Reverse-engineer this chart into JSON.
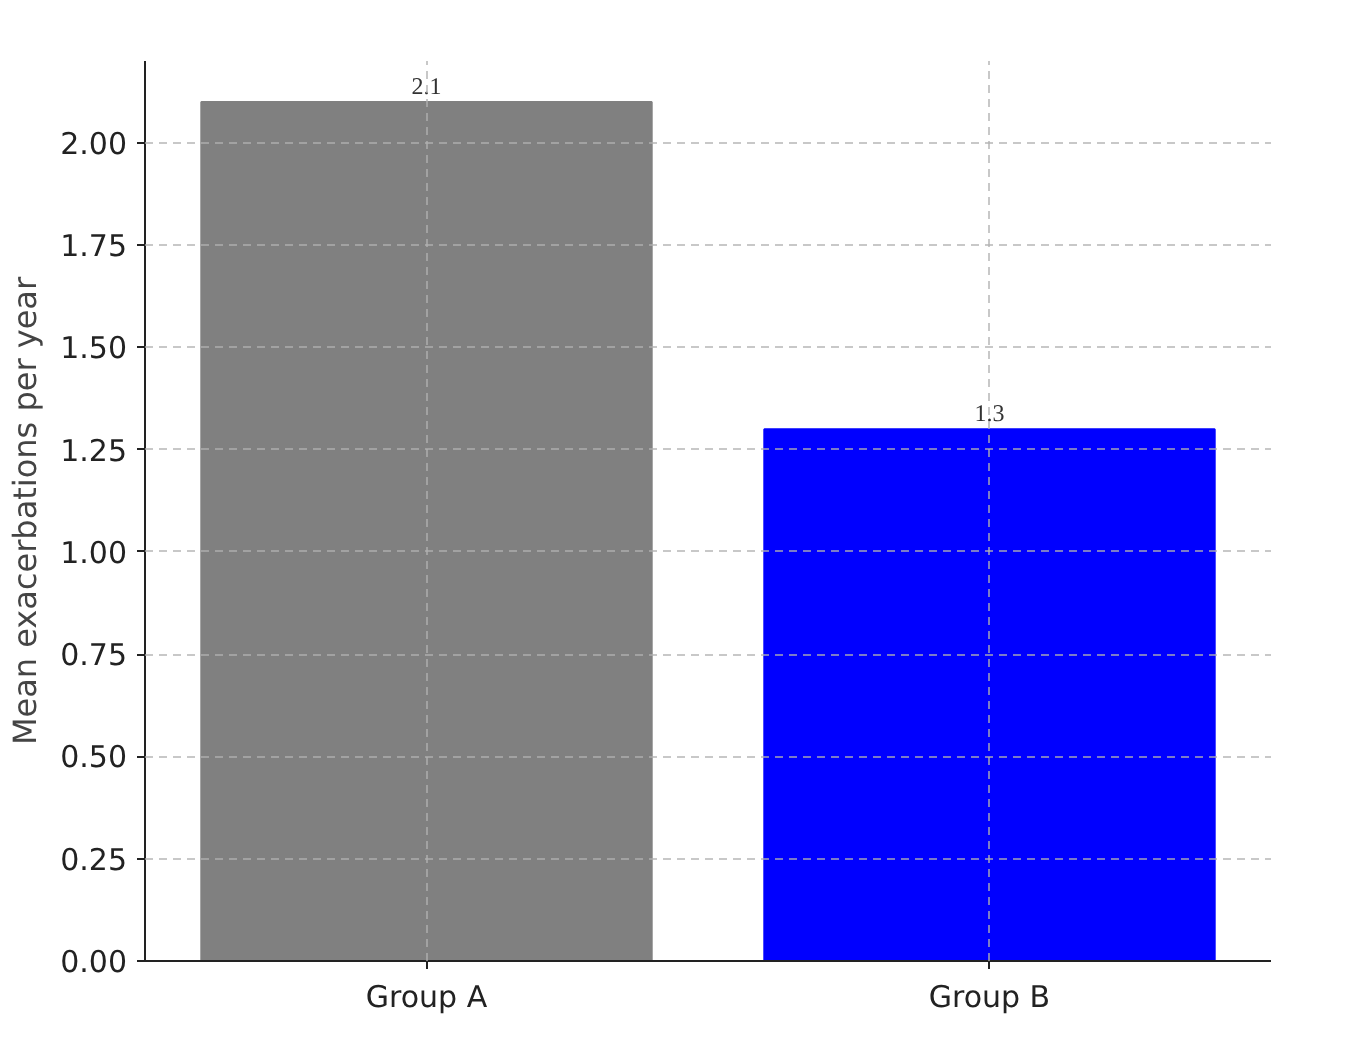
{
  "chart_data": {
    "type": "bar",
    "ylabel": "Mean exacerbations per year",
    "categories": [
      "Group A",
      "Group B"
    ],
    "values": [
      2.1,
      1.3
    ],
    "colors": [
      "#808080",
      "#0000ff"
    ],
    "ylim": [
      0,
      2.2
    ],
    "yticks": [
      {
        "value": 0,
        "label": "0.00"
      },
      {
        "value": 0.25,
        "label": "0.25"
      },
      {
        "value": 0.5,
        "label": "0.50"
      },
      {
        "value": 0.75,
        "label": "0.75"
      },
      {
        "value": 1,
        "label": "1.00"
      },
      {
        "value": 1.25,
        "label": "1.25"
      },
      {
        "value": 1.5,
        "label": "1.50"
      },
      {
        "value": 1.75,
        "label": "1.75"
      },
      {
        "value": 2,
        "label": "2.00"
      }
    ],
    "grid": true,
    "data_labels": true
  }
}
